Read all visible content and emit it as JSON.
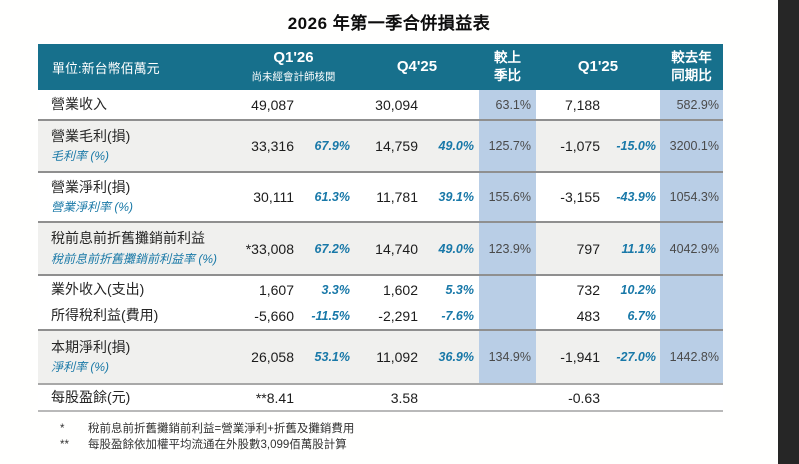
{
  "page": {
    "title": "2026 年第一季合併損益表"
  },
  "header": {
    "unit_label": "單位:新台幣佰萬元",
    "q126_label": "Q1'26",
    "q126_note": "尚未經會計師核閱",
    "q425_label": "Q4'25",
    "qoq_line1": "較上",
    "qoq_line2": "季比",
    "q125_label": "Q1'25",
    "yoy_line1": "較去年",
    "yoy_line2": "同期比"
  },
  "rows": [
    {
      "label": "營業收入",
      "sublabel": "",
      "q126": "49,087",
      "q126_pct": "",
      "q425": "30,094",
      "q425_pct": "",
      "qoq": "63.1%",
      "q125": "7,188",
      "q125_pct": "",
      "yoy": "582.9%"
    },
    {
      "label": "營業毛利(損)",
      "sublabel": "毛利率 (%)",
      "q126": "33,316",
      "q126_pct": "67.9%",
      "q425": "14,759",
      "q425_pct": "49.0%",
      "qoq": "125.7%",
      "q125": "-1,075",
      "q125_pct": "-15.0%",
      "yoy": "3200.1%"
    },
    {
      "label": "營業淨利(損)",
      "sublabel": "營業淨利率 (%)",
      "q126": "30,111",
      "q126_pct": "61.3%",
      "q425": "11,781",
      "q425_pct": "39.1%",
      "qoq": "155.6%",
      "q125": "-3,155",
      "q125_pct": "-43.9%",
      "yoy": "1054.3%"
    },
    {
      "label": "稅前息前折舊攤銷前利益",
      "sublabel": "稅前息前折舊攤銷前利益率 (%)",
      "q126": "*33,008",
      "q126_pct": "67.2%",
      "q425": "14,740",
      "q425_pct": "49.0%",
      "qoq": "123.9%",
      "q125": "797",
      "q125_pct": "11.1%",
      "yoy": "4042.9%"
    },
    {
      "label": "業外收入(支出)",
      "sublabel": "",
      "q126": "1,607",
      "q126_pct": "3.3%",
      "q425": "1,602",
      "q425_pct": "5.3%",
      "qoq": "",
      "q125": "732",
      "q125_pct": "10.2%",
      "yoy": ""
    },
    {
      "label": "所得稅利益(費用)",
      "sublabel": "",
      "q126": "-5,660",
      "q126_pct": "-11.5%",
      "q425": "-2,291",
      "q425_pct": "-7.6%",
      "qoq": "",
      "q125": "483",
      "q125_pct": "6.7%",
      "yoy": ""
    },
    {
      "label": "本期淨利(損)",
      "sublabel": "淨利率 (%)",
      "q126": "26,058",
      "q126_pct": "53.1%",
      "q425": "11,092",
      "q425_pct": "36.9%",
      "qoq": "134.9%",
      "q125": "-1,941",
      "q125_pct": "-27.0%",
      "yoy": "1442.8%"
    },
    {
      "label": "每股盈餘(元)",
      "sublabel": "",
      "q126": "**8.41",
      "q126_pct": "",
      "q425": "3.58",
      "q425_pct": "",
      "qoq": "",
      "q125": "-0.63",
      "q125_pct": "",
      "yoy": ""
    }
  ],
  "footnotes": [
    {
      "marker": "*",
      "text": "稅前息前折舊攤銷前利益=營業淨利+折舊及攤銷費用"
    },
    {
      "marker": "**",
      "text": "每股盈餘依加權平均流通在外股數3,099佰萬股計算"
    }
  ],
  "colors": {
    "header_bg": "#17708c",
    "highlight_column_bg": "#b9cee6",
    "shaded_row_bg": "#f0f0ee",
    "percent_text": "#1878a8",
    "row_separator": "#8f8f8f",
    "side_bar": "#262626"
  }
}
